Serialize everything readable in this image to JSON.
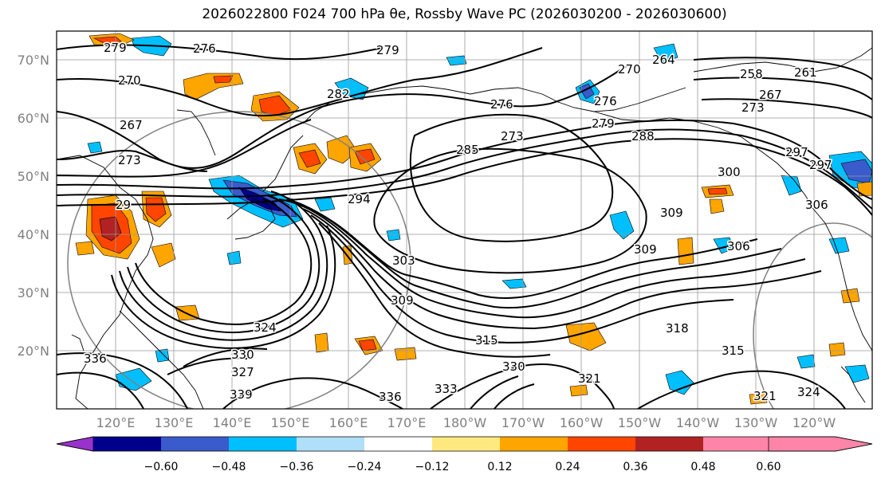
{
  "title": "2026022800 F024 700 hPa θe, Rossby Wave PC (2026030200 - 2026030600)",
  "lat_labels": [
    "70°N",
    "60°N",
    "50°N",
    "40°N",
    "30°N",
    "20°N"
  ],
  "lon_labels": [
    "120°E",
    "130°E",
    "140°E",
    "150°E",
    "160°E",
    "170°E",
    "180°W",
    "170°W",
    "160°W",
    "150°W",
    "140°W",
    "130°W",
    "120°W"
  ],
  "contour_labels": [
    "279",
    "276",
    "279",
    "270",
    "267",
    "273",
    "282",
    "276",
    "273",
    "285",
    "279",
    "288",
    "276",
    "270",
    "264",
    "258",
    "261",
    "267",
    "273",
    "297",
    "300",
    "306",
    "309",
    "306",
    "309",
    "294",
    "303",
    "309",
    "318",
    "315",
    "315",
    "321",
    "324",
    "330",
    "336",
    "339",
    "336",
    "333",
    "330",
    "327",
    "324",
    "321",
    "297",
    "29"
  ],
  "colorbar": {
    "colors": [
      "#9932CC",
      "#00008B",
      "#3A5BCC",
      "#00BFFF",
      "#B0DFFA",
      "#FFFFFF",
      "#FFE97F",
      "#FFA500",
      "#FF4500",
      "#B22222",
      "#FF85A8"
    ],
    "tick_labels": [
      "−0.60",
      "−0.48",
      "−0.36",
      "−0.24",
      "−0.12",
      "0.12",
      "0.24",
      "0.36",
      "0.48",
      "0.60"
    ]
  },
  "colors": {
    "contour": "#000000",
    "grid": "#999999",
    "coast": "#000000",
    "label": "#808080"
  }
}
